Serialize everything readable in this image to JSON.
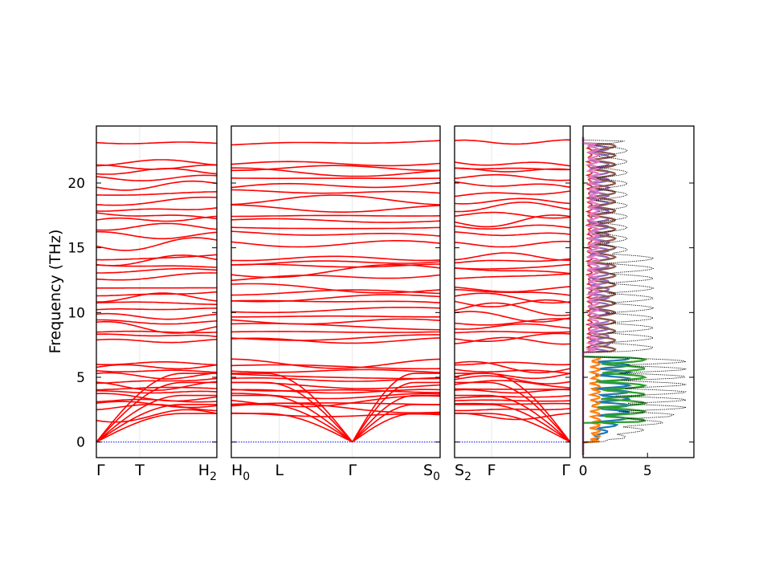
{
  "chart_data": {
    "type": "line",
    "ylabel": "Frequency (THz)",
    "ylim": [
      -1.2,
      24.4
    ],
    "yticks": [
      0,
      5,
      10,
      15,
      20
    ],
    "tick_labels_y": [
      "0",
      "5",
      "10",
      "15",
      "20"
    ],
    "band_color": "#ff0000",
    "zero_line_color": "#0000ff",
    "panels": [
      {
        "k_points": [
          {
            "label": "Γ",
            "sub": "",
            "pos": 0.0
          },
          {
            "label": "T",
            "sub": "",
            "pos": 0.36
          },
          {
            "label": "H",
            "sub": "2",
            "pos": 1.0
          }
        ],
        "left_gamma": 0.0,
        "right_gamma": null
      },
      {
        "k_points": [
          {
            "label": "H",
            "sub": "0",
            "pos": 0.0
          },
          {
            "label": "L",
            "sub": "",
            "pos": 0.23
          },
          {
            "label": "Γ",
            "sub": "",
            "pos": 0.58
          },
          {
            "label": "S",
            "sub": "0",
            "pos": 1.0
          }
        ],
        "left_gamma": null,
        "mid_gamma": 0.58,
        "right_gamma": null
      },
      {
        "k_points": [
          {
            "label": "S",
            "sub": "2",
            "pos": 0.0
          },
          {
            "label": "F",
            "sub": "",
            "pos": 0.32
          },
          {
            "label": "Γ",
            "sub": "",
            "pos": 1.0
          }
        ],
        "left_gamma": null,
        "right_gamma": 1.0
      }
    ],
    "dos": {
      "xlim": [
        0,
        8.6
      ],
      "xticks": [
        0,
        5
      ],
      "tick_labels_x": [
        "0",
        "5"
      ],
      "total_color": "#000000",
      "series_colors": [
        "#1f77b4",
        "#ff7f0e",
        "#2ca02c",
        "#d62728",
        "#9467bd",
        "#8c564b",
        "#e377c2"
      ]
    }
  }
}
